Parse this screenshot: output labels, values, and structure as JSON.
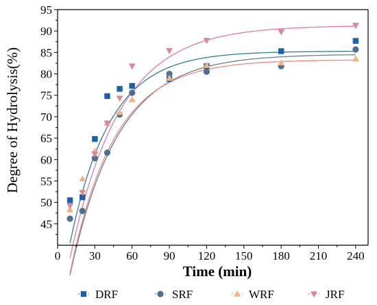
{
  "chart_data": {
    "type": "scatter",
    "title": "",
    "xlabel": "Time (min)",
    "ylabel": "Degree of Hydrolysis(%)",
    "xlim": [
      0,
      250
    ],
    "ylim": [
      40,
      95
    ],
    "xticks": [
      0,
      30,
      60,
      90,
      120,
      150,
      180,
      210,
      240
    ],
    "yticks": [
      45,
      50,
      55,
      60,
      65,
      70,
      75,
      80,
      85,
      90,
      95
    ],
    "grid": false,
    "legend_position": "bottom",
    "fit_curves": true,
    "x": [
      10,
      20,
      30,
      40,
      50,
      60,
      90,
      120,
      180,
      240
    ],
    "series": [
      {
        "name": "DRF",
        "marker": "square",
        "color": "#1f5fa8",
        "line_color": "#2e7b9c",
        "values": [
          50.5,
          51.2,
          64.8,
          74.8,
          76.5,
          77.2,
          78.8,
          81.8,
          85.3,
          87.7
        ],
        "fit": [
          40.5,
          85.3,
          0.031
        ]
      },
      {
        "name": "SRF",
        "marker": "circle",
        "color": "#4f6f8f",
        "line_color": "#6e7d8c",
        "values": [
          46.2,
          48.0,
          60.3,
          61.6,
          70.5,
          75.6,
          80.0,
          80.5,
          81.8,
          85.7
        ],
        "fit": [
          33.0,
          84.6,
          0.026
        ]
      },
      {
        "name": "WRF",
        "marker": "triangle-up",
        "color": "#f2b38a",
        "line_color": "#e8897a",
        "values": [
          48.3,
          55.5,
          62.0,
          68.5,
          71.0,
          74.0,
          79.0,
          82.0,
          82.6,
          83.5
        ],
        "fit": [
          33.5,
          83.3,
          0.028
        ]
      },
      {
        "name": "JRF",
        "marker": "triangle-down",
        "color": "#d98a9a",
        "line_color": "#e07aa0",
        "values": [
          49.2,
          52.3,
          61.3,
          68.5,
          74.3,
          81.8,
          85.4,
          87.8,
          89.8,
          91.3
        ],
        "fit": [
          37.0,
          91.3,
          0.025
        ]
      }
    ]
  }
}
